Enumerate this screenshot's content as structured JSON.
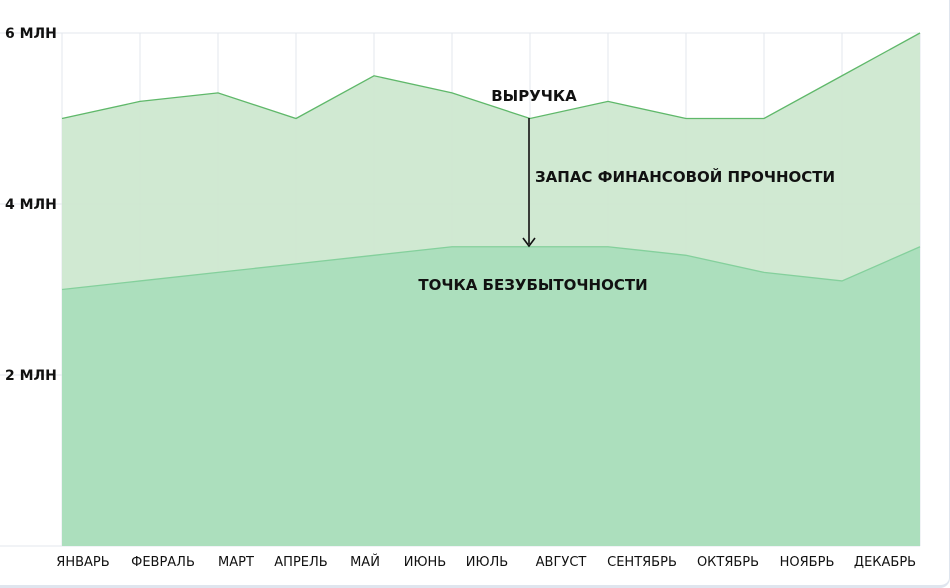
{
  "chart_data": {
    "type": "area",
    "categories": [
      "ЯНВАРЬ",
      "ФЕВРАЛЬ",
      "МАРТ",
      "АПРЕЛЬ",
      "МАЙ",
      "ИЮНЬ",
      "ИЮЛЬ",
      "АВГУСТ",
      "СЕНТЯБРЬ",
      "ОКТЯБРЬ",
      "НОЯБРЬ",
      "ДЕКАБРЬ"
    ],
    "series": [
      {
        "name": "ВЫРУЧКА",
        "values": [
          5.0,
          5.2,
          5.3,
          5.0,
          5.5,
          5.3,
          5.0,
          5.2,
          5.0,
          5.0,
          5.5,
          6.0
        ]
      },
      {
        "name": "ТОЧКА БЕЗУБЫТОЧНОСТИ",
        "values": [
          3.0,
          3.1,
          3.2,
          3.3,
          3.4,
          3.5,
          3.5,
          3.5,
          3.4,
          3.2,
          3.1,
          3.5
        ]
      }
    ],
    "ylim": [
      0,
      6
    ],
    "yticks": [
      2,
      4,
      6
    ],
    "ytick_labels": [
      "2 МЛН",
      "4 МЛН",
      "6 МЛН"
    ],
    "grid": true,
    "annotations": {
      "revenue": "ВЫРУЧКА",
      "margin": "ЗАПАС ФИНАНСОВОЙ ПРОЧНОСТИ",
      "breakeven": "ТОЧКА БЕЗУБЫТОЧНОСТИ"
    },
    "colors": {
      "revenue_fill": "#cde8d0",
      "revenue_line": "#5fb86a",
      "breakeven_fill": "#acdfbd",
      "breakeven_line": "#84d09c",
      "grid": "#e3e7ec"
    }
  }
}
